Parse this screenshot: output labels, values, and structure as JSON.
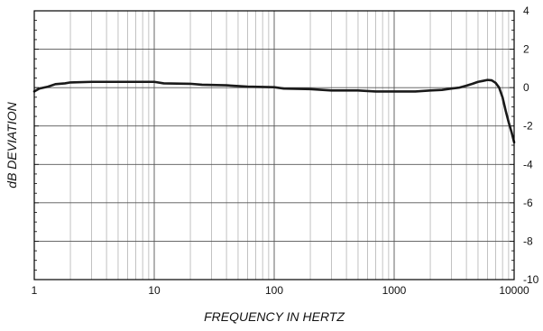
{
  "chart_data": {
    "type": "line",
    "title": "",
    "xlabel": "FREQUENCY IN HERTZ",
    "ylabel": "dB DEVIATION",
    "x_scale": "log",
    "xlim": [
      1,
      10000
    ],
    "ylim": [
      -10,
      4
    ],
    "x_ticks": [
      1,
      10,
      100,
      1000,
      10000
    ],
    "x_tick_labels": [
      "1",
      "10",
      "100",
      "1000",
      "10000"
    ],
    "y_ticks": [
      4,
      2,
      0,
      -2,
      -4,
      -6,
      -8,
      -10
    ],
    "y_tick_labels": [
      "4",
      "2",
      "0",
      "-2",
      "-4",
      "-6",
      "-8",
      "-10"
    ],
    "y_axis_side": "right",
    "grid": true,
    "legend": "none",
    "colors": {
      "line": "#1a1a1a",
      "grid": "#9a9a9a",
      "frame": "#000000",
      "background": "#ffffff"
    },
    "series": [
      {
        "x": [
          1,
          1.1,
          1.2,
          1.3,
          1.5,
          1.8,
          2.0,
          3.0,
          5.0,
          8.0,
          10,
          12,
          20,
          25,
          40,
          50,
          60,
          100,
          120,
          200,
          300,
          500,
          700,
          1000,
          1500,
          2000,
          2500,
          3000,
          3500,
          4000,
          4500,
          5000,
          5500,
          6000,
          6500,
          7000,
          7500,
          8000,
          8500,
          9000,
          9500,
          10000
        ],
        "y": [
          -0.2,
          -0.05,
          0.0,
          0.05,
          0.18,
          0.22,
          0.27,
          0.3,
          0.3,
          0.3,
          0.3,
          0.22,
          0.2,
          0.15,
          0.12,
          0.08,
          0.05,
          0.02,
          -0.05,
          -0.08,
          -0.15,
          -0.15,
          -0.2,
          -0.2,
          -0.2,
          -0.15,
          -0.12,
          -0.05,
          0.0,
          0.1,
          0.2,
          0.3,
          0.35,
          0.4,
          0.38,
          0.25,
          0.0,
          -0.5,
          -1.2,
          -1.8,
          -2.3,
          -2.85
        ]
      }
    ]
  }
}
